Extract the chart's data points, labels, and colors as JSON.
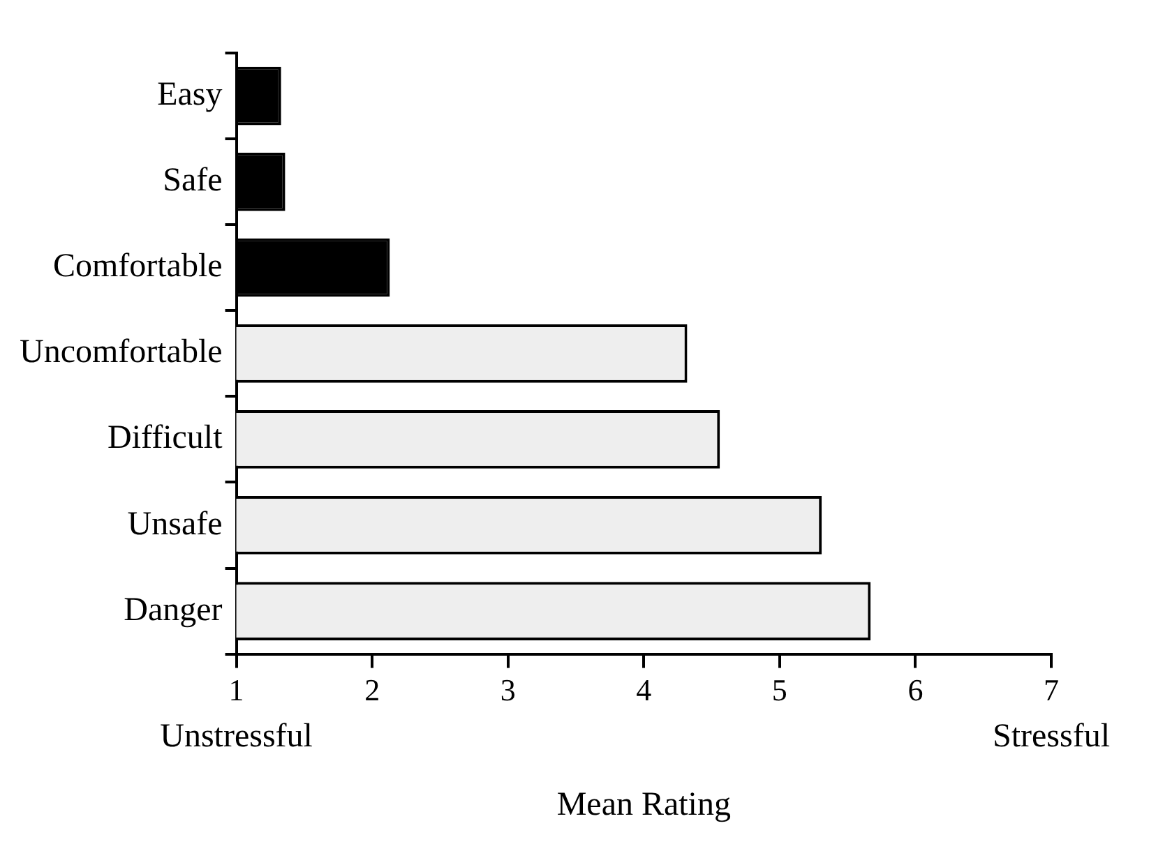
{
  "chart_data": {
    "type": "bar",
    "orientation": "horizontal",
    "xlabel": "Mean Rating",
    "categories": [
      "Easy",
      "Safe",
      "Comfortable",
      "Uncomfortable",
      "Difficult",
      "Unsafe",
      "Danger"
    ],
    "values": [
      1.33,
      1.36,
      2.13,
      4.32,
      4.56,
      5.31,
      5.67
    ],
    "colors": [
      "#000000",
      "#000000",
      "#000000",
      "#eeeeee",
      "#eeeeee",
      "#eeeeee",
      "#eeeeee"
    ],
    "xlim": [
      1,
      7
    ],
    "xticks": [
      1,
      2,
      3,
      4,
      5,
      6,
      7
    ],
    "grid": false,
    "legend": false,
    "annotations": [
      "Unstressful",
      "Stressful"
    ]
  }
}
